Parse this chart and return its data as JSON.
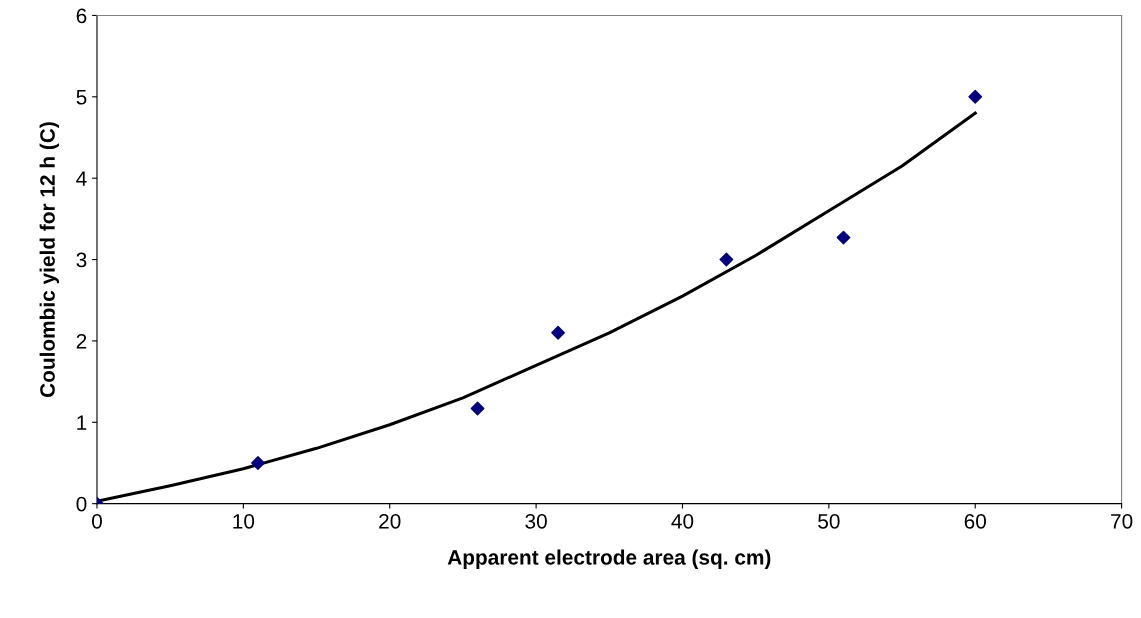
{
  "chart_data": {
    "type": "scatter",
    "xlabel": "Apparent electrode area (sq. cm)",
    "ylabel": "Coulombic yield for 12 h (C)",
    "xlim": [
      0,
      70
    ],
    "xticks": [
      0,
      10,
      20,
      30,
      40,
      50,
      60,
      70
    ],
    "ylim": [
      0,
      6
    ],
    "yticks": [
      0,
      1,
      2,
      3,
      4,
      5,
      6
    ],
    "grid": false,
    "legend": false,
    "series": [
      {
        "color": "#000080",
        "marker": "diamond",
        "x": [
          0,
          11,
          26,
          31.5,
          43,
          51,
          60
        ],
        "values": [
          0,
          0.5,
          1.17,
          2.1,
          3.0,
          3.27,
          5.0
        ]
      },
      {
        "type": "line",
        "color": "#000000",
        "line_style": "solid",
        "marker": "none",
        "x": [
          0,
          5,
          10,
          15,
          20,
          25,
          30,
          35,
          40,
          45,
          50,
          55,
          60
        ],
        "values": [
          0.03,
          0.22,
          0.43,
          0.68,
          0.97,
          1.3,
          1.7,
          2.1,
          2.55,
          3.05,
          3.6,
          4.15,
          4.8
        ]
      }
    ]
  }
}
